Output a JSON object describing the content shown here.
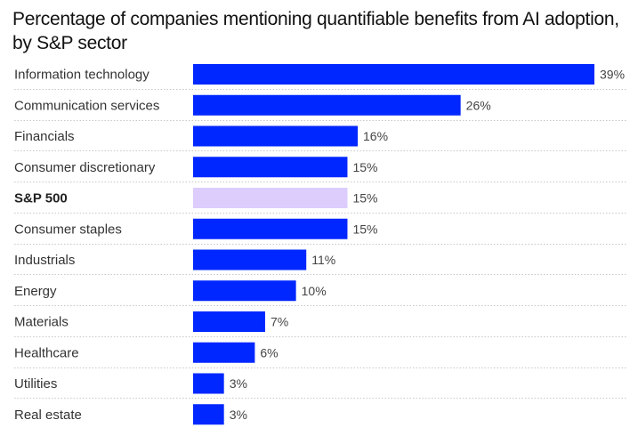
{
  "chart_data": {
    "type": "bar",
    "orientation": "horizontal",
    "title": "Percentage of companies mentioning quantifiable benefits from AI adoption, by S&P sector",
    "xlabel": "",
    "ylabel": "",
    "xlim": [
      0,
      39
    ],
    "grid": false,
    "legend": null,
    "value_suffix": "%",
    "categories": [
      "Information technology",
      "Communication services",
      "Financials",
      "Consumer discretionary",
      "S&P 500",
      "Consumer staples",
      "Industrials",
      "Energy",
      "Materials",
      "Healthcare",
      "Utilities",
      "Real estate"
    ],
    "values": [
      39,
      26,
      16,
      15,
      15,
      15,
      11,
      10,
      7,
      6,
      3,
      3
    ],
    "highlight": [
      "S&P 500"
    ],
    "data_labels": [
      "39%",
      "26%",
      "16%",
      "15%",
      "15%",
      "15%",
      "11%",
      "10%",
      "7%",
      "6%",
      "3%",
      "3%"
    ],
    "colors": {
      "bar": "#0027ff",
      "highlight_bar": "#dccdfd"
    }
  }
}
